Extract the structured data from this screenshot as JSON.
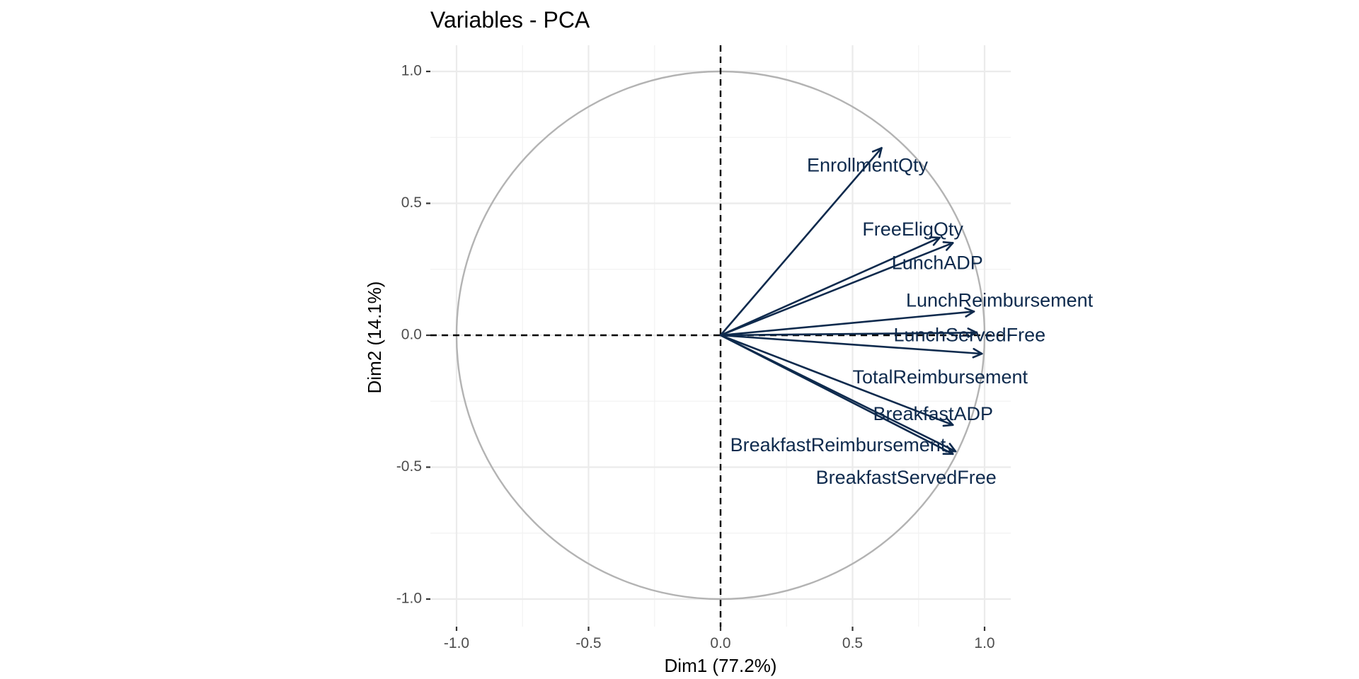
{
  "chart_data": {
    "type": "scatter",
    "title": "Variables - PCA",
    "xlabel": "Dim1 (77.2%)",
    "ylabel": "Dim2 (14.1%)",
    "xlim": [
      -1.1,
      1.1
    ],
    "ylim": [
      -1.1,
      1.1
    ],
    "xticks": [
      -1.0,
      -0.5,
      0.0,
      0.5,
      1.0
    ],
    "yticks": [
      -1.0,
      -0.5,
      0.0,
      0.5,
      1.0
    ],
    "tick_labels": [
      "-1.0",
      "-0.5",
      "0.0",
      "0.5",
      "1.0"
    ],
    "grid": true,
    "correlation_circle": true,
    "arrow_color": "#0e2a4d",
    "variables": [
      {
        "name": "EnrollmentQty",
        "x": 0.61,
        "y": 0.71
      },
      {
        "name": "FreeEligQty",
        "x": 0.83,
        "y": 0.37
      },
      {
        "name": "LunchADP",
        "x": 0.88,
        "y": 0.35
      },
      {
        "name": "LunchReimbursement",
        "x": 0.96,
        "y": 0.09
      },
      {
        "name": "LunchServedFree",
        "x": 0.97,
        "y": 0.01
      },
      {
        "name": "TotalReimbursement",
        "x": 0.99,
        "y": -0.07
      },
      {
        "name": "BreakfastADP",
        "x": 0.88,
        "y": -0.34
      },
      {
        "name": "BreakfastReimbursement",
        "x": 0.89,
        "y": -0.44
      },
      {
        "name": "BreakfastServedFree",
        "x": 0.88,
        "y": -0.45
      }
    ]
  }
}
